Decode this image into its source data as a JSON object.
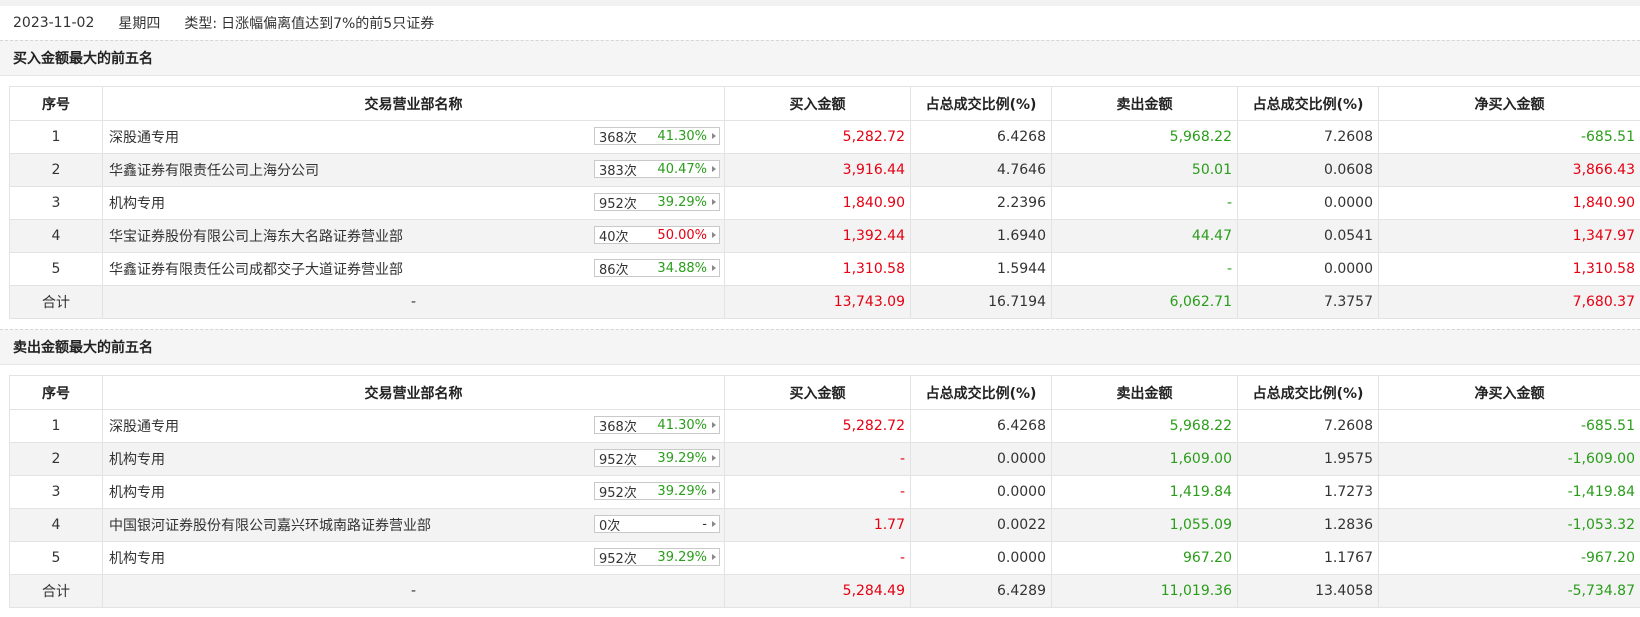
{
  "header": {
    "date": "2023-11-02",
    "weekday": "星期四",
    "type_label": "类型:",
    "type_value": "日涨幅偏离值达到7%的前5只证券"
  },
  "colors": {
    "red": "#e60012",
    "green": "#2a9d1a"
  },
  "columns": [
    "序号",
    "交易营业部名称",
    "买入金额",
    "占总成交比例(%)",
    "卖出金额",
    "占总成交比例(%)",
    "净买入金额"
  ],
  "buy_section": {
    "title": "买入金额最大的前五名",
    "rows": [
      {
        "idx": "1",
        "name": "深股通专用",
        "times": "368次",
        "rate": "41.30%",
        "rate_color": "green",
        "buy": "5,282.72",
        "buy_pct": "6.4268",
        "sell": "5,968.22",
        "sell_pct": "7.2608",
        "net": "-685.51",
        "net_color": "green"
      },
      {
        "idx": "2",
        "name": "华鑫证券有限责任公司上海分公司",
        "times": "383次",
        "rate": "40.47%",
        "rate_color": "green",
        "buy": "3,916.44",
        "buy_pct": "4.7646",
        "sell": "50.01",
        "sell_pct": "0.0608",
        "net": "3,866.43",
        "net_color": "red"
      },
      {
        "idx": "3",
        "name": "机构专用",
        "times": "952次",
        "rate": "39.29%",
        "rate_color": "green",
        "buy": "1,840.90",
        "buy_pct": "2.2396",
        "sell": "-",
        "sell_pct": "0.0000",
        "net": "1,840.90",
        "net_color": "red"
      },
      {
        "idx": "4",
        "name": "华宝证券股份有限公司上海东大名路证券营业部",
        "times": "40次",
        "rate": "50.00%",
        "rate_color": "red",
        "buy": "1,392.44",
        "buy_pct": "1.6940",
        "sell": "44.47",
        "sell_pct": "0.0541",
        "net": "1,347.97",
        "net_color": "red"
      },
      {
        "idx": "5",
        "name": "华鑫证券有限责任公司成都交子大道证券营业部",
        "times": "86次",
        "rate": "34.88%",
        "rate_color": "green",
        "buy": "1,310.58",
        "buy_pct": "1.5944",
        "sell": "-",
        "sell_pct": "0.0000",
        "net": "1,310.58",
        "net_color": "red"
      }
    ],
    "total": {
      "label": "合计",
      "name": "-",
      "buy": "13,743.09",
      "buy_pct": "16.7194",
      "sell": "6,062.71",
      "sell_pct": "7.3757",
      "net": "7,680.37",
      "net_color": "red"
    }
  },
  "sell_section": {
    "title": "卖出金额最大的前五名",
    "rows": [
      {
        "idx": "1",
        "name": "深股通专用",
        "times": "368次",
        "rate": "41.30%",
        "rate_color": "green",
        "buy": "5,282.72",
        "buy_pct": "6.4268",
        "sell": "5,968.22",
        "sell_pct": "7.2608",
        "net": "-685.51",
        "net_color": "green"
      },
      {
        "idx": "2",
        "name": "机构专用",
        "times": "952次",
        "rate": "39.29%",
        "rate_color": "green",
        "buy": "-",
        "buy_pct": "0.0000",
        "sell": "1,609.00",
        "sell_pct": "1.9575",
        "net": "-1,609.00",
        "net_color": "green"
      },
      {
        "idx": "3",
        "name": "机构专用",
        "times": "952次",
        "rate": "39.29%",
        "rate_color": "green",
        "buy": "-",
        "buy_pct": "0.0000",
        "sell": "1,419.84",
        "sell_pct": "1.7273",
        "net": "-1,419.84",
        "net_color": "green"
      },
      {
        "idx": "4",
        "name": "中国银河证券股份有限公司嘉兴环城南路证券营业部",
        "times": "0次",
        "rate": "-",
        "rate_color": "gray",
        "buy": "1.77",
        "buy_pct": "0.0022",
        "sell": "1,055.09",
        "sell_pct": "1.2836",
        "net": "-1,053.32",
        "net_color": "green"
      },
      {
        "idx": "5",
        "name": "机构专用",
        "times": "952次",
        "rate": "39.29%",
        "rate_color": "green",
        "buy": "-",
        "buy_pct": "0.0000",
        "sell": "967.20",
        "sell_pct": "1.1767",
        "net": "-967.20",
        "net_color": "green"
      }
    ],
    "total": {
      "label": "合计",
      "name": "-",
      "buy": "5,284.49",
      "buy_pct": "6.4289",
      "sell": "11,019.36",
      "sell_pct": "13.4058",
      "net": "-5,734.87",
      "net_color": "green"
    }
  }
}
